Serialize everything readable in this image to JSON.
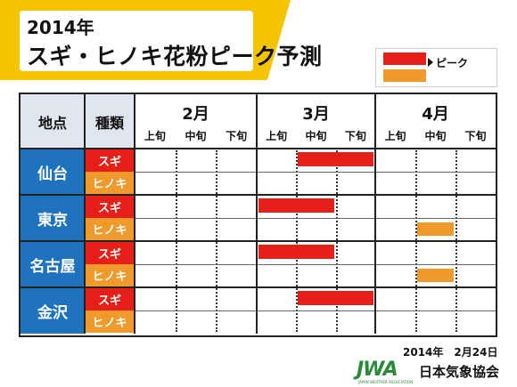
{
  "title": {
    "line1": "2014年",
    "line2": "スギ・ヒノキ花粉ピーク予測"
  },
  "legend": {
    "peak_label": "ピーク"
  },
  "header": {
    "location": "地点",
    "kind": "種類"
  },
  "months": [
    {
      "label": "2月",
      "decades": [
        "上旬",
        "中旬",
        "下旬"
      ]
    },
    {
      "label": "3月",
      "decades": [
        "上旬",
        "中旬",
        "下旬"
      ]
    },
    {
      "label": "4月",
      "decades": [
        "上旬",
        "中旬",
        "下旬"
      ]
    }
  ],
  "cities": [
    {
      "name": "仙台",
      "sugi": "スギ",
      "hinoki": "ヒノキ"
    },
    {
      "name": "東京",
      "sugi": "スギ",
      "hinoki": "ヒノキ"
    },
    {
      "name": "名古屋",
      "sugi": "スギ",
      "hinoki": "ヒノキ"
    },
    {
      "name": "金沢",
      "sugi": "スギ",
      "hinoki": "ヒノキ"
    }
  ],
  "peaks": [
    {
      "city": 0,
      "pollen": "sugi",
      "start_decade": 4,
      "end_decade": 5
    },
    {
      "city": 1,
      "pollen": "sugi",
      "start_decade": 3,
      "end_decade": 4
    },
    {
      "city": 1,
      "pollen": "hinoki",
      "start_decade": 7,
      "end_decade": 7
    },
    {
      "city": 2,
      "pollen": "sugi",
      "start_decade": 3,
      "end_decade": 4
    },
    {
      "city": 2,
      "pollen": "hinoki",
      "start_decade": 7,
      "end_decade": 7
    },
    {
      "city": 3,
      "pollen": "sugi",
      "start_decade": 4,
      "end_decade": 5
    }
  ],
  "colors": {
    "sugi": "#e62018",
    "hinoki": "#f09a2c",
    "city_bg": "#1f72bd",
    "banner": "#f5c400"
  },
  "footer": {
    "date": "2014年　2月24日",
    "org": "日本気象協会",
    "logo": "JWA",
    "logo_sub": "JAPAN WEATHER ASSOCIATION"
  }
}
